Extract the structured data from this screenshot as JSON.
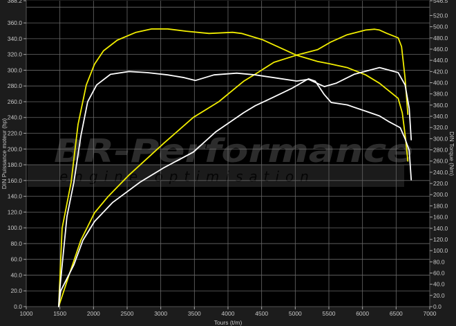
{
  "chart_data": {
    "type": "line",
    "title": "",
    "xlabel": "Tours (t/m)",
    "ylabel_left": "DIN Puissance moteur (hp)",
    "ylabel_right": "DIN Torque (Nm)",
    "xlim": [
      1000,
      7000
    ],
    "ylim_left": [
      0,
      388.2
    ],
    "ylim_right": [
      0,
      546.5
    ],
    "x_ticks": [
      "1000",
      "1500",
      "2000",
      "2500",
      "3000",
      "3500",
      "4000",
      "4500",
      "5000",
      "5500",
      "6000",
      "6500",
      "7000"
    ],
    "y_left_ticks": [
      "0.0",
      "20.0",
      "40.0",
      "60.0",
      "80.0",
      "100.0",
      "120.0",
      "140.0",
      "160.0",
      "180.0",
      "200.0",
      "220.0",
      "240.0",
      "260.0",
      "280.0",
      "300.0",
      "320.0",
      "340.0",
      "360.0",
      "388.2"
    ],
    "y_right_ticks": [
      "0.0",
      "20.0",
      "40.0",
      "60.0",
      "80.0",
      "100.0",
      "120.0",
      "140.0",
      "160.0",
      "180.0",
      "200.0",
      "220.0",
      "240.0",
      "260.0",
      "280.0",
      "300.0",
      "320.0",
      "340.0",
      "360.0",
      "380.0",
      "400.0",
      "420.0",
      "440.0",
      "460.0",
      "480.0",
      "500.0",
      "520.0",
      "546.5"
    ],
    "grid": true,
    "background": "#000000",
    "series": [
      {
        "color": "#f2ee00",
        "axis": "right",
        "unit": "Nm",
        "points": [
          [
            1482,
            0
          ],
          [
            1533,
            140
          ],
          [
            1667,
            222
          ],
          [
            1770,
            325
          ],
          [
            1893,
            396
          ],
          [
            2015,
            433
          ],
          [
            2149,
            457
          ],
          [
            2354,
            476
          ],
          [
            2631,
            490
          ],
          [
            2867,
            496
          ],
          [
            3103,
            496
          ],
          [
            3380,
            492
          ],
          [
            3719,
            488
          ],
          [
            4068,
            490
          ],
          [
            4201,
            488
          ],
          [
            4509,
            477
          ],
          [
            5022,
            449
          ],
          [
            5330,
            438
          ],
          [
            5504,
            434
          ],
          [
            5771,
            427
          ],
          [
            6048,
            414
          ],
          [
            6253,
            399
          ],
          [
            6530,
            372
          ],
          [
            6592,
            346
          ],
          [
            6643,
            297
          ],
          [
            6674,
            260
          ]
        ]
      },
      {
        "color": "#f2ee00",
        "axis": "left",
        "unit": "hp",
        "points": [
          [
            1482,
            0
          ],
          [
            1636,
            40
          ],
          [
            1811,
            84
          ],
          [
            2015,
            119
          ],
          [
            2221,
            140
          ],
          [
            2528,
            167
          ],
          [
            3041,
            207
          ],
          [
            3483,
            240
          ],
          [
            3862,
            260
          ],
          [
            4232,
            286
          ],
          [
            4406,
            295
          ],
          [
            4683,
            310
          ],
          [
            5053,
            320
          ],
          [
            5330,
            326
          ],
          [
            5535,
            336
          ],
          [
            5771,
            345
          ],
          [
            6048,
            351
          ],
          [
            6181,
            352
          ],
          [
            6253,
            351
          ],
          [
            6356,
            347
          ],
          [
            6530,
            341
          ],
          [
            6581,
            330
          ],
          [
            6633,
            290
          ],
          [
            6674,
            244
          ]
        ]
      },
      {
        "color": "#ffffff",
        "axis": "right",
        "unit": "Nm",
        "points": [
          [
            1482,
            0
          ],
          [
            1503,
            37
          ],
          [
            1605,
            161
          ],
          [
            1708,
            222
          ],
          [
            1811,
            304
          ],
          [
            1913,
            366
          ],
          [
            2047,
            396
          ],
          [
            2252,
            415
          ],
          [
            2528,
            420
          ],
          [
            2795,
            418
          ],
          [
            3103,
            414
          ],
          [
            3350,
            409
          ],
          [
            3514,
            404
          ],
          [
            3791,
            414
          ],
          [
            4129,
            417
          ],
          [
            4406,
            414
          ],
          [
            4683,
            409
          ],
          [
            5022,
            403
          ],
          [
            5196,
            406
          ],
          [
            5432,
            393
          ],
          [
            5607,
            399
          ],
          [
            5874,
            415
          ],
          [
            6253,
            427
          ],
          [
            6530,
            418
          ],
          [
            6633,
            396
          ],
          [
            6695,
            354
          ],
          [
            6725,
            298
          ]
        ]
      },
      {
        "color": "#ffffff",
        "axis": "left",
        "unit": "hp",
        "points": [
          [
            1482,
            0
          ],
          [
            1513,
            20
          ],
          [
            1708,
            53
          ],
          [
            1841,
            84
          ],
          [
            2015,
            108
          ],
          [
            2282,
            132
          ],
          [
            2693,
            158
          ],
          [
            3041,
            176
          ],
          [
            3483,
            196
          ],
          [
            3821,
            222
          ],
          [
            4232,
            246
          ],
          [
            4406,
            255
          ],
          [
            4683,
            266
          ],
          [
            4950,
            277
          ],
          [
            5196,
            289
          ],
          [
            5299,
            286
          ],
          [
            5432,
            269
          ],
          [
            5535,
            259
          ],
          [
            5771,
            256
          ],
          [
            6048,
            248
          ],
          [
            6253,
            242
          ],
          [
            6386,
            235
          ],
          [
            6561,
            227
          ],
          [
            6633,
            213
          ],
          [
            6695,
            198
          ],
          [
            6725,
            161
          ]
        ]
      }
    ]
  },
  "watermark": {
    "brand": "BR-Performance",
    "tagline": "engine optimisation"
  }
}
